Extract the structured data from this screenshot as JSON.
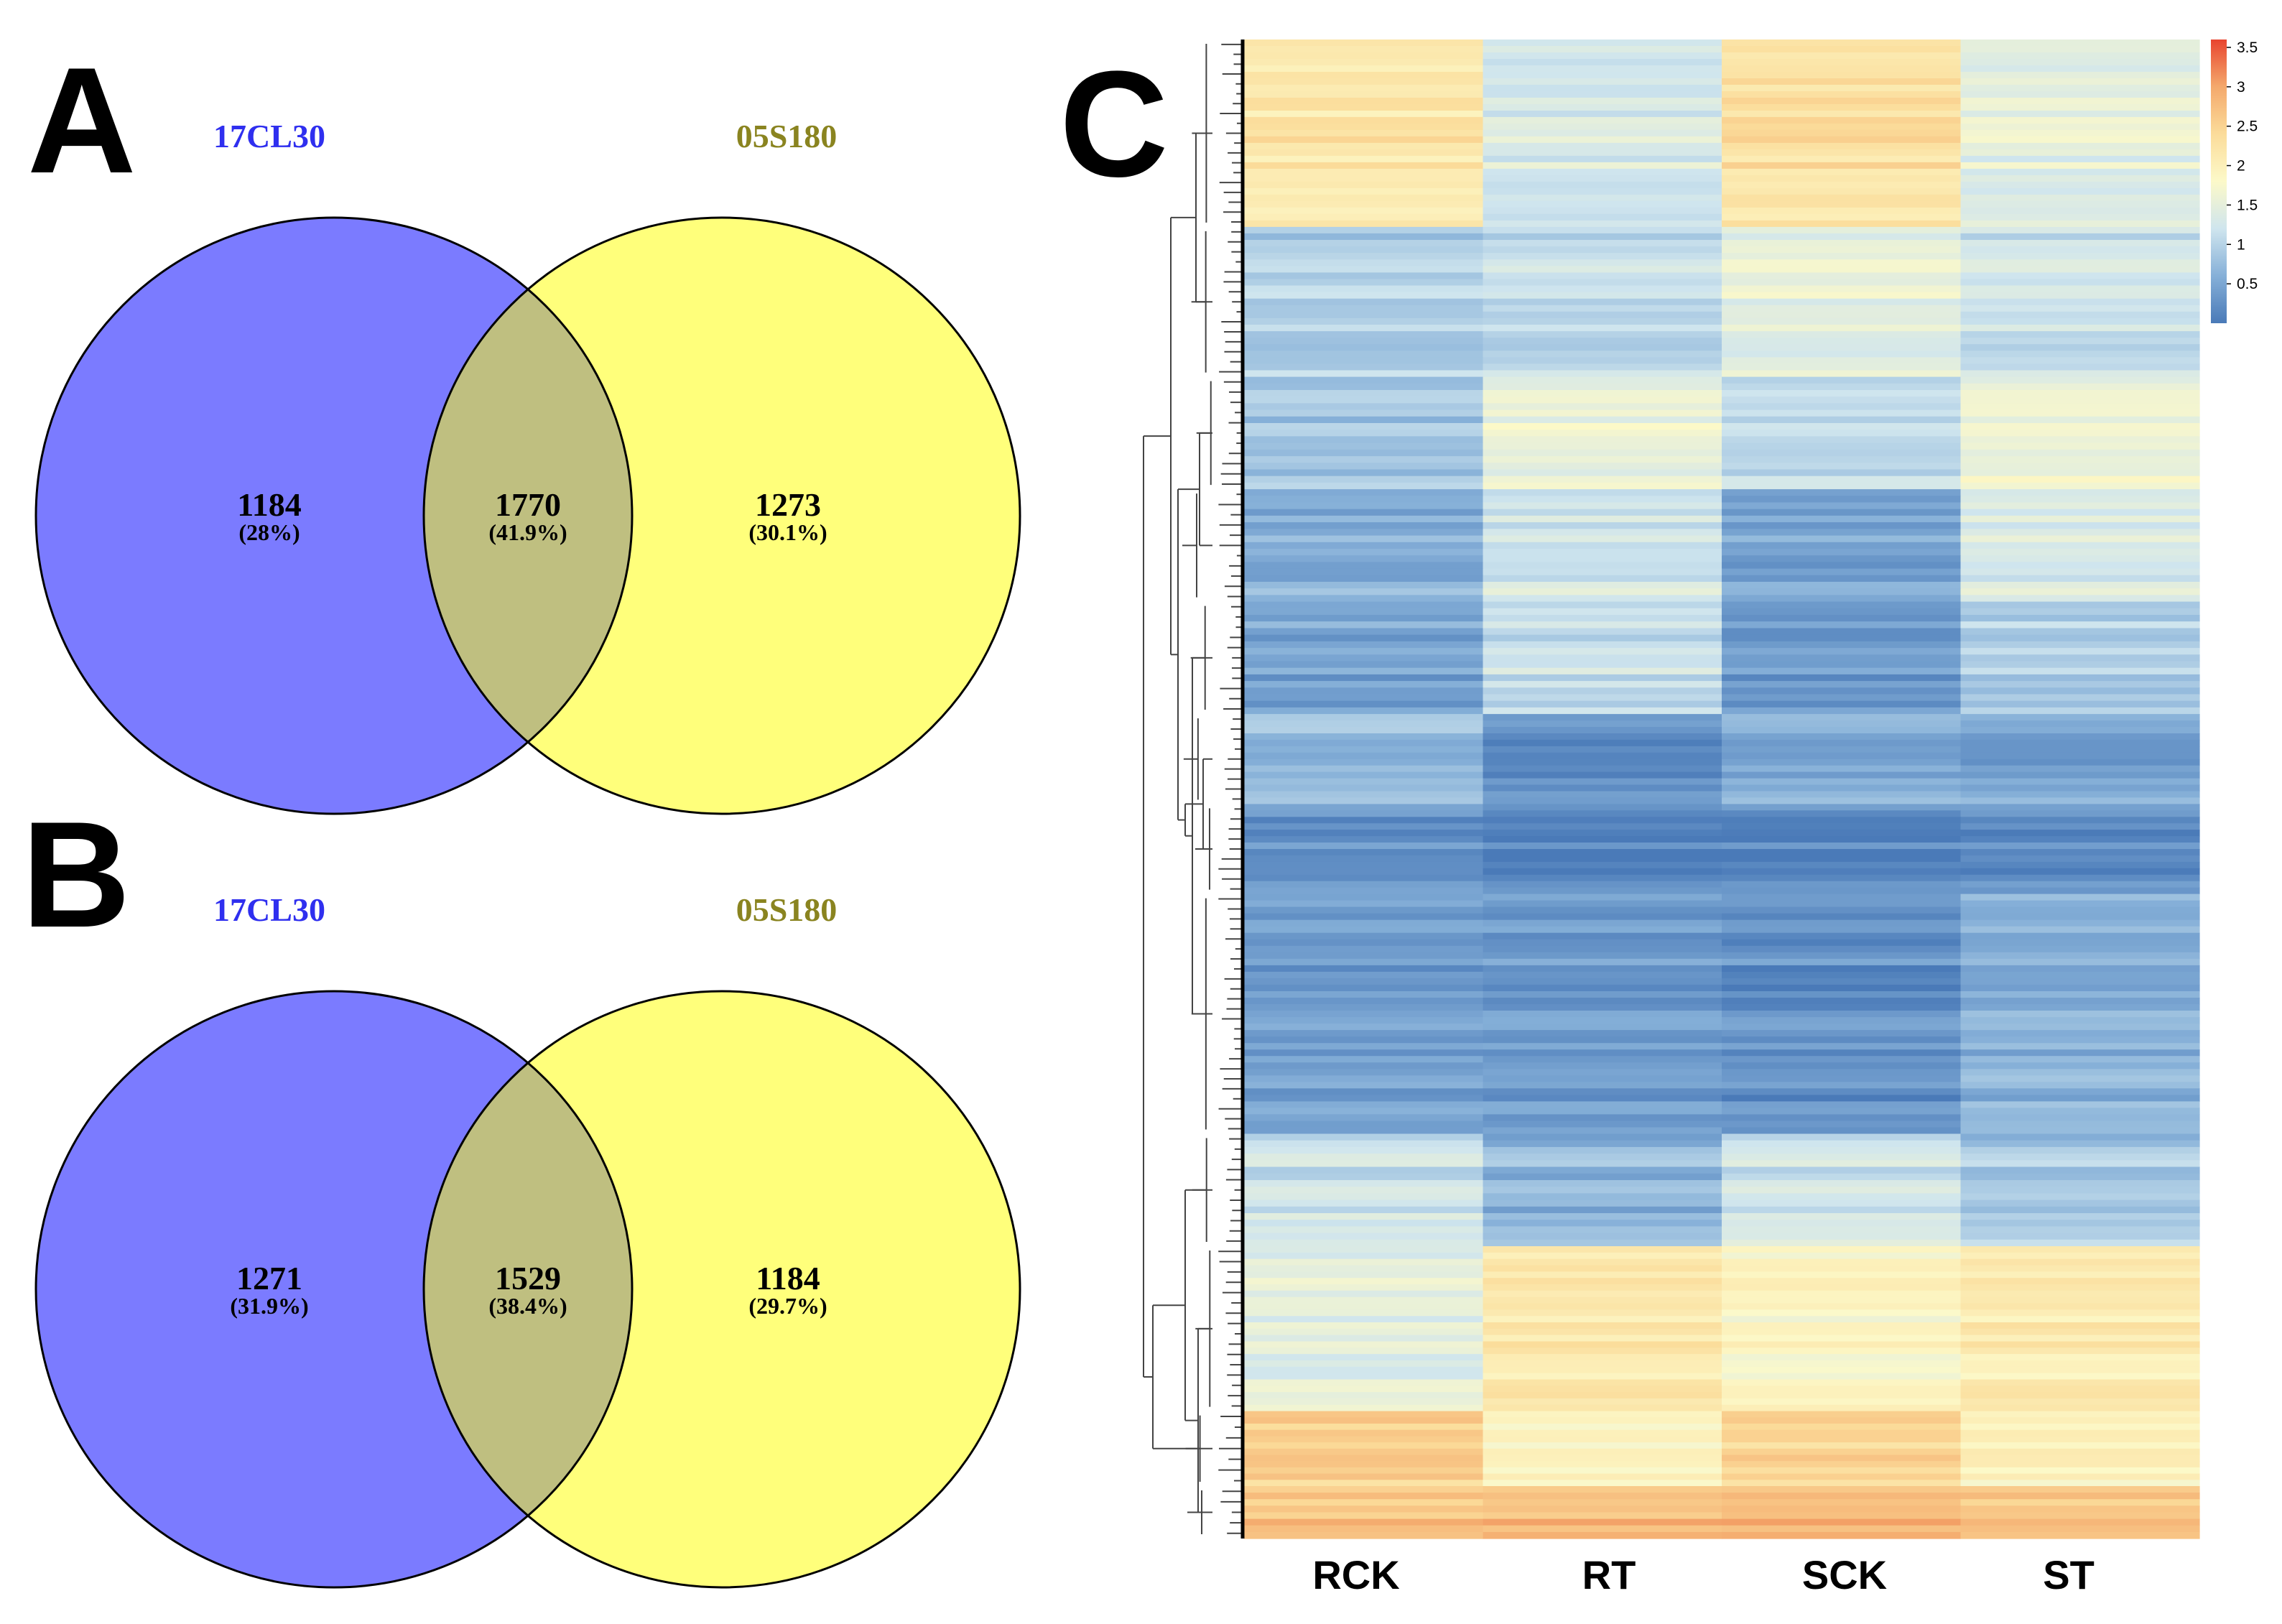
{
  "chart_data": [
    {
      "type": "venn",
      "panel": "A",
      "sets": [
        {
          "name": "17CL30",
          "color": "#7b7bff",
          "label_color": "#2f2fef"
        },
        {
          "name": "05S180",
          "color": "#ffff7b",
          "label_color": "#8a8420"
        }
      ],
      "overlap_color": "#bfbf80",
      "regions": [
        {
          "region": "17CL30 only",
          "count": "1184",
          "percent": "(28%)"
        },
        {
          "region": "17CL30 & 05S180",
          "count": "1770",
          "percent": "(41.9%)"
        },
        {
          "region": "05S180 only",
          "count": "1273",
          "percent": "(30.1%)"
        }
      ]
    },
    {
      "type": "venn",
      "panel": "B",
      "sets": [
        {
          "name": "17CL30",
          "color": "#7b7bff",
          "label_color": "#2f2fef"
        },
        {
          "name": "05S180",
          "color": "#ffff7b",
          "label_color": "#8a8420"
        }
      ],
      "overlap_color": "#bfbf80",
      "regions": [
        {
          "region": "17CL30 only",
          "count": "1271",
          "percent": "(31.9%)"
        },
        {
          "region": "17CL30 & 05S180",
          "count": "1529",
          "percent": "(38.4%)"
        },
        {
          "region": "05S180 only",
          "count": "1184",
          "percent": "(29.7%)"
        }
      ]
    },
    {
      "type": "heatmap",
      "panel": "C",
      "columns": [
        "RCK",
        "RT",
        "SCK",
        "ST"
      ],
      "row_dendrogram": true,
      "colorbar": {
        "ticks": [
          "3.5",
          "3",
          "2.5",
          "2",
          "1.5",
          "1",
          "0.5"
        ],
        "range": [
          0,
          3.6
        ],
        "colors": [
          "#4a7ab8",
          "#86b0d8",
          "#cfe5ee",
          "#fcf9c9",
          "#fbdc9a",
          "#f4a96c",
          "#e8452f"
        ]
      },
      "row_blocks": [
        {
          "rows": 25,
          "values": [
            2.2,
            1.3,
            2.3,
            1.5
          ]
        },
        {
          "rows": 20,
          "values": [
            0.95,
            1.1,
            1.5,
            1.2
          ]
        },
        {
          "rows": 15,
          "values": [
            0.85,
            1.55,
            1.05,
            1.6
          ]
        },
        {
          "rows": 15,
          "values": [
            0.6,
            1.25,
            0.5,
            1.4
          ]
        },
        {
          "rows": 15,
          "values": [
            0.5,
            1.15,
            0.35,
            0.9
          ]
        },
        {
          "rows": 12,
          "values": [
            0.75,
            0.25,
            0.55,
            0.45
          ]
        },
        {
          "rows": 12,
          "values": [
            0.3,
            0.15,
            0.15,
            0.25
          ]
        },
        {
          "rows": 32,
          "values": [
            0.4,
            0.35,
            0.25,
            0.6
          ]
        },
        {
          "rows": 15,
          "values": [
            1.2,
            0.65,
            1.2,
            0.85
          ]
        },
        {
          "rows": 22,
          "values": [
            1.45,
            2.15,
            1.85,
            2.1
          ]
        },
        {
          "rows": 10,
          "values": [
            2.55,
            1.9,
            2.45,
            1.95
          ]
        },
        {
          "rows": 7,
          "values": [
            2.7,
            2.75,
            2.8,
            2.7
          ]
        }
      ]
    }
  ],
  "panels": {
    "a": "A",
    "b": "B",
    "c": "C"
  }
}
